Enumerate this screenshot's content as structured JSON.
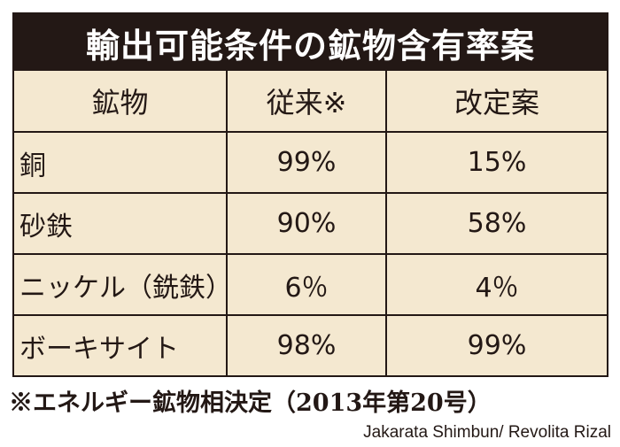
{
  "title": "輸出可能条件の鉱物含有率案",
  "headers": {
    "mineral": "鉱物",
    "previous": "従来※",
    "proposal": "改定案"
  },
  "rows": [
    {
      "mineral": "銅",
      "previous": "99%",
      "proposal": "15%"
    },
    {
      "mineral": "砂鉄",
      "previous": "90%",
      "proposal": "58%"
    },
    {
      "mineral": "ニッケル（銑鉄）",
      "previous": "6％",
      "proposal": "4％"
    },
    {
      "mineral": "ボーキサイト",
      "previous": "98%",
      "proposal": "99%"
    }
  ],
  "footnote": "※エネルギー鉱物相決定（2013年第20号）",
  "credit": "Jakarata Shimbun/ Revolita Rizal",
  "colors": {
    "dark": "#231815",
    "cell_bg": "#f4e8d0"
  }
}
